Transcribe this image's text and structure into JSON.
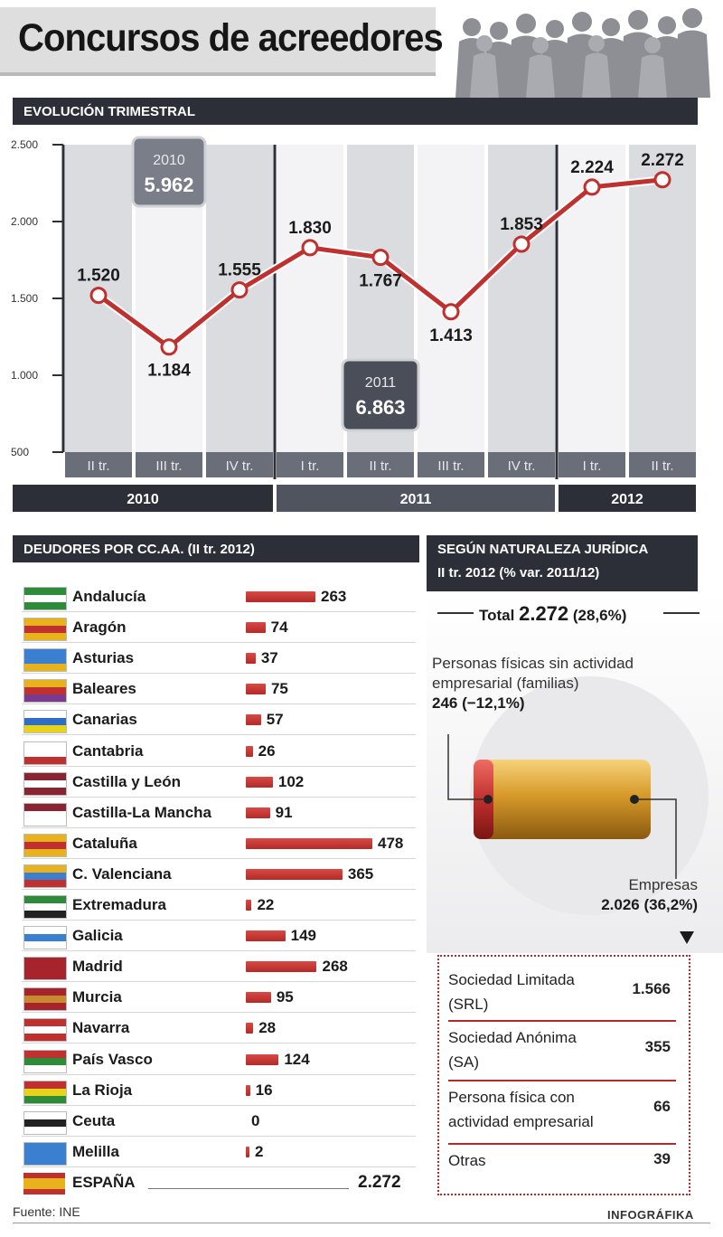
{
  "title": "Concursos de acreedores",
  "sections": {
    "evolution": "EVOLUCIÓN TRIMESTRAL",
    "regions": "DEUDORES POR CC.AA. (II tr. 2012)",
    "legal_line1": "SEGÚN NATURALEZA JURÍDICA",
    "legal_line2": "II tr. 2012 (% var. 2011/12)"
  },
  "chart_data": [
    {
      "type": "line",
      "title": "EVOLUCIÓN TRIMESTRAL",
      "ylim": [
        500,
        2500
      ],
      "yticks": [
        500,
        1000,
        1500,
        2000,
        2500
      ],
      "ytick_labels": [
        "500",
        "1.000",
        "1.500",
        "2.000",
        "2.500"
      ],
      "categories": [
        "II tr.",
        "III tr.",
        "IV tr.",
        "I tr.",
        "II tr.",
        "III tr.",
        "IV tr.",
        "I tr.",
        "II tr."
      ],
      "years": [
        {
          "label": "2010",
          "span": 3
        },
        {
          "label": "2011",
          "span": 4
        },
        {
          "label": "2012",
          "span": 2
        }
      ],
      "values": [
        1520,
        1184,
        1555,
        1830,
        1767,
        1413,
        1853,
        2224,
        2272
      ],
      "value_labels": [
        "1.520",
        "1.184",
        "1.555",
        "1.830",
        "1.767",
        "1.413",
        "1.853",
        "2.224",
        "2.272"
      ],
      "annotations": [
        {
          "year": "2010",
          "total": "5.962"
        },
        {
          "year": "2011",
          "total": "6.863"
        }
      ],
      "colors": {
        "line": "#c0302e",
        "band_dark": "#d7d8dd",
        "band_light": "#f2f2f4"
      }
    },
    {
      "type": "bar",
      "title": "DEUDORES POR CC.AA. (II tr. 2012)",
      "categories": [
        "Andalucía",
        "Aragón",
        "Asturias",
        "Baleares",
        "Canarias",
        "Cantabria",
        "Castilla y León",
        "Castilla-La Mancha",
        "Cataluña",
        "C. Valenciana",
        "Extremadura",
        "Galicia",
        "Madrid",
        "Murcia",
        "Navarra",
        "País Vasco",
        "La Rioja",
        "Ceuta",
        "Melilla"
      ],
      "values": [
        263,
        74,
        37,
        75,
        57,
        26,
        102,
        91,
        478,
        365,
        22,
        149,
        268,
        95,
        28,
        124,
        16,
        0,
        2
      ],
      "value_labels": [
        "263",
        "74",
        "37",
        "75",
        "57",
        "26",
        "102",
        "91",
        "478",
        "365",
        "22",
        "149",
        "268",
        "95",
        "28",
        "124",
        "16",
        "0",
        "2"
      ],
      "total": {
        "label": "ESPAÑA",
        "value": 2272,
        "value_label": "2.272"
      },
      "colors": {
        "bar": "#c0302e"
      }
    },
    {
      "type": "table",
      "title": "SEGÚN NATURALEZA JURÍDICA",
      "total": {
        "label": "Total",
        "value": "2.272",
        "var": "(28,6%)"
      },
      "segments": [
        {
          "label": "Personas físicas sin actividad empresarial (familias)",
          "value": 246,
          "value_label": "246 (−12,1%)"
        },
        {
          "label": "Empresas",
          "value": 2026,
          "value_label": "2.026 (36,2%)"
        }
      ],
      "rows": [
        {
          "label": "Sociedad Limitada (SRL)",
          "value": "1.566"
        },
        {
          "label": "Sociedad Anónima (SA)",
          "value": "355"
        },
        {
          "label": "Persona física con actividad empresarial",
          "value": "66"
        },
        {
          "label": "Otras",
          "value": "39"
        }
      ]
    }
  ],
  "legal": {
    "total_label": "Total",
    "total_value": "2.272",
    "total_var": "(28,6%)",
    "families_line1": "Personas físicas sin actividad",
    "families_line2": "empresarial (familias)",
    "families_value": "246 (−12,1%)",
    "companies_label": "Empresas",
    "companies_value": "2.026 (36,2%)",
    "rows": [
      {
        "line1": "Sociedad Limitada",
        "line2": "(SRL)",
        "value": "1.566"
      },
      {
        "line1": "Sociedad Anónima",
        "line2": "(SA)",
        "value": "355"
      },
      {
        "line1": "Persona física con",
        "line2": "actividad empresarial",
        "value": "66"
      },
      {
        "line1": "Otras",
        "line2": "",
        "value": "39"
      }
    ]
  },
  "footer": {
    "source": "Fuente: INE",
    "credit": "INFOGRÁFIKA"
  }
}
